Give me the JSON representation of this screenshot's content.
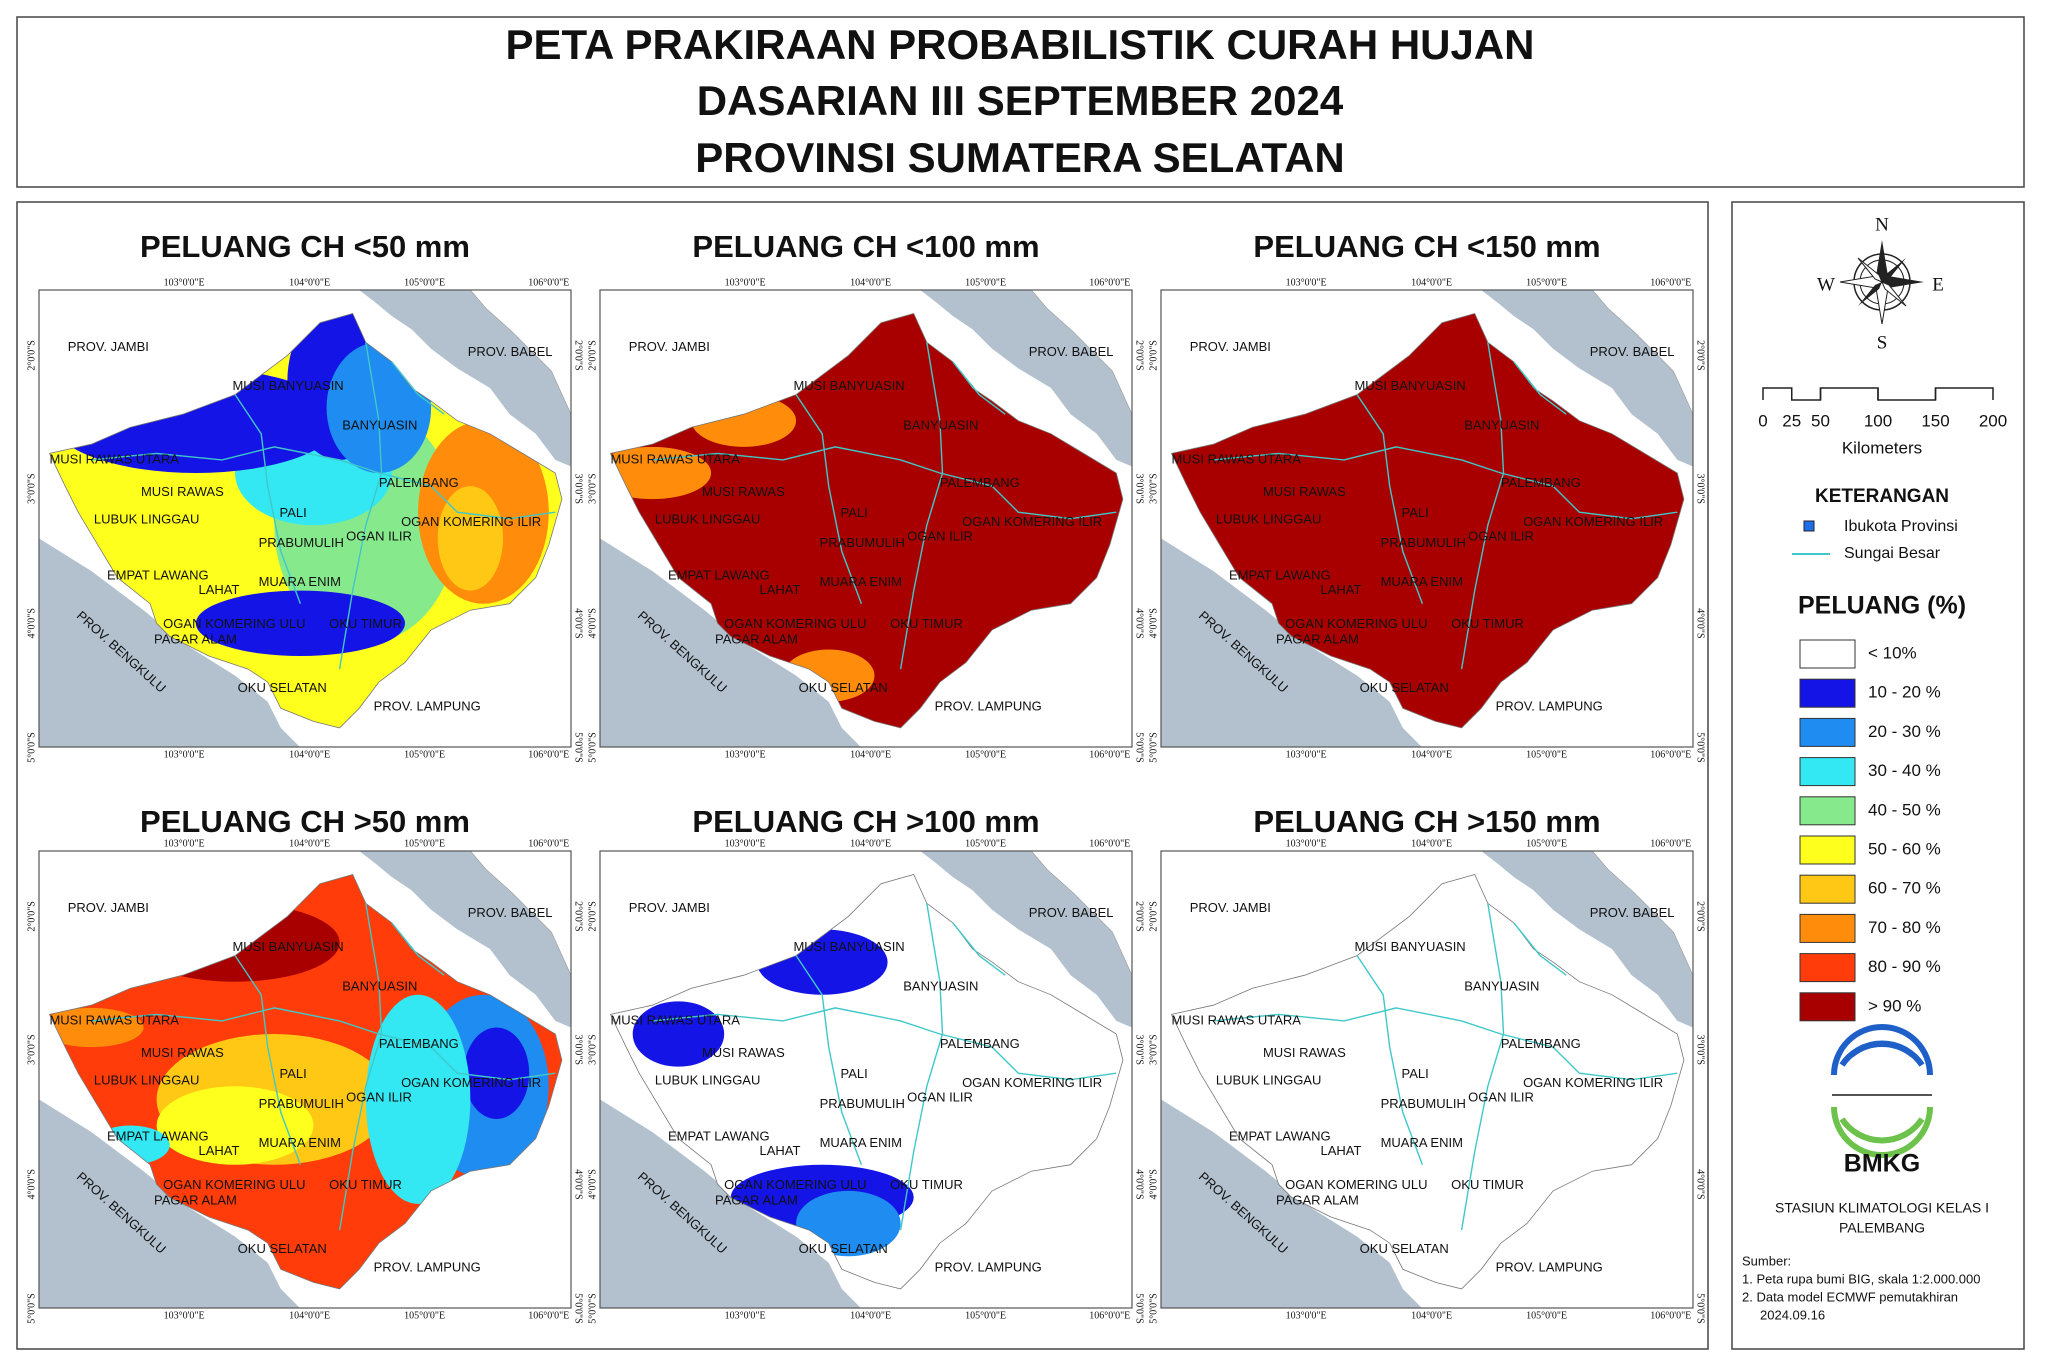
{
  "header": {
    "title_lines": [
      "PETA PRAKIRAAN PROBABILISTIK CURAH HUJAN",
      "DASARIAN III SEPTEMBER 2024",
      "PROVINSI SUMATERA SELATAN"
    ]
  },
  "panels": [
    {
      "title": "PELUANG CH <50 mm"
    },
    {
      "title": "PELUANG CH <100 mm"
    },
    {
      "title": "PELUANG CH <150 mm"
    },
    {
      "title": "PELUANG CH >50 mm"
    },
    {
      "title": "PELUANG CH >100 mm"
    },
    {
      "title": "PELUANG CH >150 mm"
    }
  ],
  "map_labels": [
    "PROV. JAMBI",
    "MUSI BANYUASIN",
    "PROV. BABEL",
    "BANYUASIN",
    "MUSI RAWAS UTARA",
    "PALEMBANG",
    "MUSI RAWAS",
    "PALI",
    "LUBUK LINGGAU",
    "OGAN ILIR",
    "OGAN KOMERING ILIR",
    "PRABUMULIH",
    "MUARA ENIM",
    "EMPAT LAWANG",
    "LAHAT",
    "OGAN KOMERING ULU",
    "OKU TIMUR",
    "PAGAR ALAM",
    "OKU SELATAN",
    "PROV. LAMPUNG",
    "PROV. BENGKULU"
  ],
  "longitudes": [
    "103°0'0\"E",
    "104°0'0\"E",
    "105°0'0\"E",
    "106°0'0\"E"
  ],
  "latitudes": [
    "2°0'0\"S",
    "3°0'0\"S",
    "4°0'0\"S",
    "5°0'0\"S"
  ],
  "legend": {
    "north": "N",
    "east": "E",
    "south": "S",
    "west": "W",
    "scale_ticks": [
      0,
      25,
      50,
      100,
      150,
      200
    ],
    "scale_unit": "Kilometers",
    "keterangan_title": "KETERANGAN",
    "items": [
      "Ibukota Provinsi",
      "Sungai Besar"
    ],
    "peluang_title": "PELUANG (%)",
    "classes": [
      {
        "label": "< 10%",
        "color": "#ffffff"
      },
      {
        "label": "10 - 20 %",
        "color": "#1414e6"
      },
      {
        "label": "20 - 30 %",
        "color": "#1e8cf0"
      },
      {
        "label": "30 - 40 %",
        "color": "#33e8f2"
      },
      {
        "label": "40 - 50 %",
        "color": "#86ea8c"
      },
      {
        "label": "50 - 60 %",
        "color": "#ffff1e"
      },
      {
        "label": "60 - 70 %",
        "color": "#ffc814"
      },
      {
        "label": "70 - 80 %",
        "color": "#ff8c0a"
      },
      {
        "label": "80 - 90 %",
        "color": "#ff3c0a"
      },
      {
        "label": "> 90 %",
        "color": "#a80000"
      }
    ],
    "agency": "BMKG",
    "station": [
      "STASIUN KLIMATOLOGI KELAS I",
      "PALEMBANG"
    ],
    "source_title": "Sumber:",
    "sources": [
      "1. Peta rupa bumi BIG, skala 1:2.000.000",
      "2. Data model ECMWF pemutakhiran",
      "2024.09.16"
    ]
  }
}
